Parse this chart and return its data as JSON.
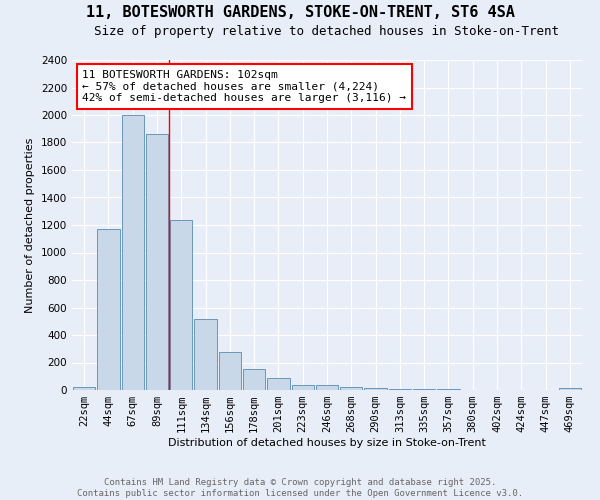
{
  "title1": "11, BOTESWORTH GARDENS, STOKE-ON-TRENT, ST6 4SA",
  "title2": "Size of property relative to detached houses in Stoke-on-Trent",
  "xlabel": "Distribution of detached houses by size in Stoke-on-Trent",
  "ylabel": "Number of detached properties",
  "bin_labels": [
    "22sqm",
    "44sqm",
    "67sqm",
    "89sqm",
    "111sqm",
    "134sqm",
    "156sqm",
    "178sqm",
    "201sqm",
    "223sqm",
    "246sqm",
    "268sqm",
    "290sqm",
    "313sqm",
    "335sqm",
    "357sqm",
    "380sqm",
    "402sqm",
    "424sqm",
    "447sqm",
    "469sqm"
  ],
  "bar_values": [
    25,
    1170,
    2000,
    1860,
    1240,
    520,
    275,
    150,
    90,
    40,
    40,
    20,
    15,
    5,
    5,
    5,
    3,
    2,
    2,
    2,
    15
  ],
  "bar_color": "#c8d8e8",
  "bar_edge_color": "#5a8ab0",
  "annotation_text": "11 BOTESWORTH GARDENS: 102sqm\n← 57% of detached houses are smaller (4,224)\n42% of semi-detached houses are larger (3,116) →",
  "annotation_box_color": "white",
  "annotation_box_edge_color": "red",
  "vline_x": 3.5,
  "vline_color": "red",
  "ylim": [
    0,
    2400
  ],
  "yticks": [
    0,
    200,
    400,
    600,
    800,
    1000,
    1200,
    1400,
    1600,
    1800,
    2000,
    2200,
    2400
  ],
  "background_color": "#e8eef8",
  "plot_bg_color": "#e8eef8",
  "footer_text": "Contains HM Land Registry data © Crown copyright and database right 2025.\nContains public sector information licensed under the Open Government Licence v3.0.",
  "title_fontsize": 11,
  "subtitle_fontsize": 9,
  "axis_label_fontsize": 8,
  "tick_fontsize": 7.5,
  "annotation_fontsize": 8,
  "footer_fontsize": 6.5
}
